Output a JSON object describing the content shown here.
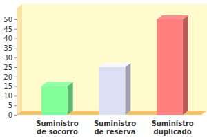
{
  "chart_data": {
    "type": "bar",
    "categories": [
      "Suministro de socorro",
      "Suministro de reserva",
      "Suministro duplicado"
    ],
    "values": [
      15,
      25,
      50
    ],
    "colors": [
      "#80ff9a",
      "#dde0f4",
      "#ff7f7f"
    ],
    "ylim": [
      0,
      50
    ],
    "yticks": [
      0,
      5,
      10,
      15,
      20,
      25,
      30,
      35,
      40,
      45,
      50
    ],
    "grid": false
  }
}
